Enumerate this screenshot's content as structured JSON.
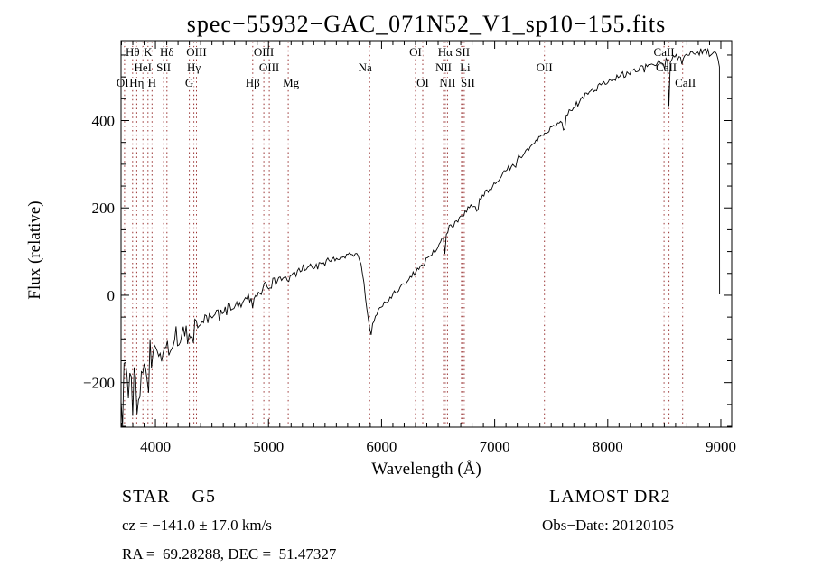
{
  "title": "spec−55932−GAC_071N52_V1_sp10−155.fits",
  "footer": {
    "class_line": {
      "left": "STAR    G5",
      "right": "LAMOST DR2"
    },
    "cz_line": {
      "left": "cz = −141.0 ± 17.0 km/s",
      "right": "Obs−Date: 20120105"
    },
    "radec_line": {
      "left": "RA =  69.28288, DEC =  51.47327"
    }
  },
  "colors": {
    "background": "#ffffff",
    "spectrum": "#000000",
    "frame": "#000000",
    "line_marker": "#993333",
    "text": "#000000"
  },
  "chart_data": {
    "type": "line",
    "title": "spec−55932−GAC_071N52_V1_sp10−155.fits",
    "xlabel": "Wavelength (Å)",
    "ylabel": "Flux (relative)",
    "xlim": [
      3696,
      9096
    ],
    "ylim": [
      -302,
      583
    ],
    "xticks": [
      4000,
      5000,
      6000,
      7000,
      8000,
      9000
    ],
    "yticks": [
      -200,
      0,
      200,
      400
    ],
    "x_minor_step": 100,
    "y_minor_step": 50,
    "grid": false,
    "legend": "none",
    "noise_seed": 13,
    "series": [
      {
        "name": "flux",
        "units": {
          "x": "Angstrom",
          "y": "relative flux"
        },
        "points": [
          [
            3696,
            -165
          ],
          [
            3720,
            -205
          ],
          [
            3740,
            -145
          ],
          [
            3760,
            -215
          ],
          [
            3780,
            -172
          ],
          [
            3800,
            -178
          ],
          [
            3850,
            -188
          ],
          [
            3900,
            -168
          ],
          [
            3950,
            -150
          ],
          [
            4000,
            -138
          ],
          [
            4100,
            -118
          ],
          [
            4200,
            -100
          ],
          [
            4300,
            -85
          ],
          [
            4400,
            -65
          ],
          [
            4500,
            -50
          ],
          [
            4600,
            -38
          ],
          [
            4700,
            -25
          ],
          [
            4800,
            -12
          ],
          [
            4900,
            5
          ],
          [
            5000,
            22
          ],
          [
            5100,
            35
          ],
          [
            5200,
            48
          ],
          [
            5300,
            60
          ],
          [
            5400,
            68
          ],
          [
            5500,
            74
          ],
          [
            5600,
            84
          ],
          [
            5700,
            92
          ],
          [
            5760,
            97
          ],
          [
            5800,
            88
          ],
          [
            5830,
            55
          ],
          [
            5860,
            -5
          ],
          [
            5885,
            -62
          ],
          [
            5905,
            -86
          ],
          [
            5925,
            -66
          ],
          [
            5950,
            -45
          ],
          [
            5985,
            -32
          ],
          [
            6050,
            -15
          ],
          [
            6100,
            0
          ],
          [
            6200,
            28
          ],
          [
            6300,
            52
          ],
          [
            6400,
            80
          ],
          [
            6500,
            112
          ],
          [
            6563,
            145
          ],
          [
            6600,
            155
          ],
          [
            6700,
            180
          ],
          [
            6800,
            205
          ],
          [
            6900,
            228
          ],
          [
            7000,
            255
          ],
          [
            7100,
            285
          ],
          [
            7200,
            312
          ],
          [
            7300,
            335
          ],
          [
            7400,
            360
          ],
          [
            7500,
            383
          ],
          [
            7600,
            398
          ],
          [
            7700,
            430
          ],
          [
            7800,
            455
          ],
          [
            7900,
            475
          ],
          [
            8000,
            490
          ],
          [
            8100,
            503
          ],
          [
            8200,
            510
          ],
          [
            8300,
            518
          ],
          [
            8400,
            528
          ],
          [
            8500,
            537
          ],
          [
            8600,
            544
          ],
          [
            8700,
            551
          ],
          [
            8800,
            557
          ],
          [
            8850,
            559
          ],
          [
            8900,
            555
          ],
          [
            8940,
            557
          ],
          [
            8970,
            544
          ],
          [
            8985,
            528
          ]
        ]
      }
    ],
    "cutoff": {
      "wavelength": 8989,
      "flux_bottom": 2
    },
    "noise_amplitude": [
      [
        3696,
        110
      ],
      [
        3750,
        95
      ],
      [
        3800,
        80
      ],
      [
        3900,
        70
      ],
      [
        4000,
        58
      ],
      [
        4150,
        45
      ],
      [
        4300,
        30
      ],
      [
        4500,
        25
      ],
      [
        4700,
        20
      ],
      [
        4900,
        16
      ],
      [
        5100,
        14
      ],
      [
        5400,
        12
      ],
      [
        5700,
        10
      ],
      [
        5850,
        9
      ],
      [
        6000,
        11
      ],
      [
        6300,
        10
      ],
      [
        6600,
        9
      ],
      [
        7000,
        9
      ],
      [
        7400,
        10
      ],
      [
        7800,
        11
      ],
      [
        8200,
        12
      ],
      [
        8600,
        11
      ],
      [
        8990,
        10
      ]
    ],
    "absorption_spikes": [
      [
        3934,
        6,
        50
      ],
      [
        3970,
        5,
        40
      ],
      [
        4102,
        5,
        35
      ],
      [
        4227,
        5,
        25
      ],
      [
        4340,
        5,
        28
      ],
      [
        4861,
        5,
        24
      ],
      [
        5175,
        9,
        16
      ],
      [
        5905,
        4,
        13
      ],
      [
        6563,
        5,
        50
      ],
      [
        6590,
        3,
        20
      ],
      [
        6845,
        10,
        28
      ],
      [
        7185,
        6,
        14
      ],
      [
        7615,
        9,
        26
      ],
      [
        8498,
        4,
        36
      ],
      [
        8542,
        4,
        106
      ],
      [
        8662,
        4,
        54
      ]
    ],
    "spectral_lines": [
      {
        "label": "Hθ",
        "wavelength": 3798,
        "row": 1
      },
      {
        "label": "K",
        "wavelength": 3934,
        "row": 1
      },
      {
        "label": "Hδ",
        "wavelength": 4102,
        "row": 1
      },
      {
        "label": "OIII",
        "wavelength": 4363,
        "row": 1
      },
      {
        "label": "OIII",
        "wavelength": 4959,
        "row": 1
      },
      {
        "label": "OI",
        "wavelength": 6300,
        "row": 1
      },
      {
        "label": "Hα",
        "wavelength": 6563,
        "row": 1
      },
      {
        "label": "SII",
        "wavelength": 6716,
        "row": 1
      },
      {
        "label": "CaII",
        "wavelength": 8498,
        "row": 1
      },
      {
        "label": "HeI",
        "wavelength": 3889,
        "row": 2
      },
      {
        "label": "SII",
        "wavelength": 4072,
        "row": 2
      },
      {
        "label": "Hγ",
        "wavelength": 4340,
        "row": 2
      },
      {
        "label": "OIII",
        "wavelength": 5007,
        "row": 2
      },
      {
        "label": "Na",
        "wavelength": 5894,
        "row": 2,
        "dx": -5
      },
      {
        "label": "NII",
        "wavelength": 6548,
        "row": 2
      },
      {
        "label": "Li",
        "wavelength": 6707,
        "row": 2,
        "dx": 4
      },
      {
        "label": "OII",
        "wavelength": 7440,
        "row": 2
      },
      {
        "label": "CaII",
        "wavelength": 8542,
        "row": 2,
        "dx": -3
      },
      {
        "label": "OII",
        "wavelength": 3727,
        "row": 3
      },
      {
        "label": "Hη",
        "wavelength": 3835,
        "row": 3
      },
      {
        "label": "H",
        "wavelength": 3970,
        "row": 3
      },
      {
        "label": "G",
        "wavelength": 4300,
        "row": 3
      },
      {
        "label": "Hβ",
        "wavelength": 4861,
        "row": 3
      },
      {
        "label": "Mg",
        "wavelength": 5175,
        "row": 3,
        "dx": 3
      },
      {
        "label": "OI",
        "wavelength": 6364,
        "row": 3
      },
      {
        "label": "NII",
        "wavelength": 6583,
        "row": 3
      },
      {
        "label": "SII",
        "wavelength": 6731,
        "row": 3,
        "dx": 4
      },
      {
        "label": "CaII",
        "wavelength": 8662,
        "row": 3,
        "dx": 3
      }
    ]
  }
}
